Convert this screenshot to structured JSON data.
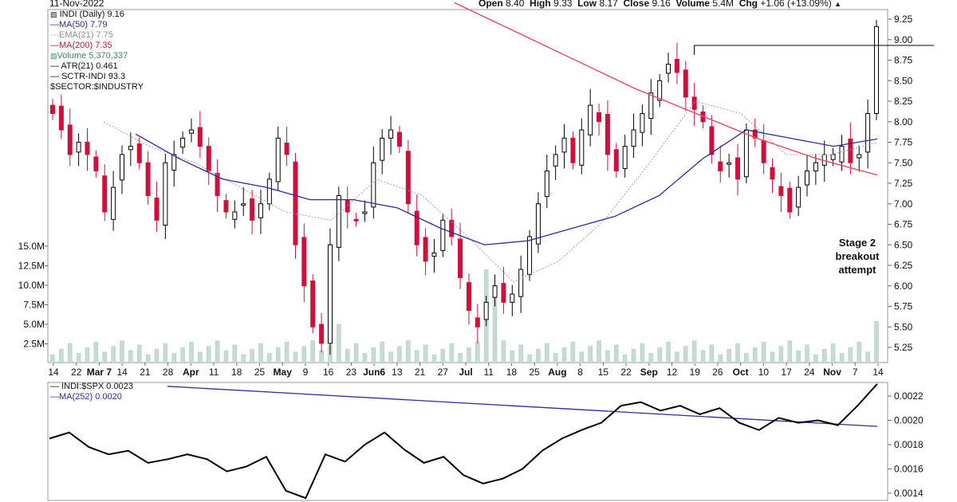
{
  "header": {
    "date": "11-Nov-2022",
    "ohlc": {
      "open_label": "Open",
      "open": "8.40",
      "high_label": "High",
      "high": "9.33",
      "low_label": "Low",
      "low": "8.17",
      "close_label": "Close",
      "close": "9.16",
      "volume_label": "Volume",
      "volume": "5.4M",
      "chg_label": "Chg",
      "chg": "+1.06 (+13.09%)",
      "chg_icon": "up-triangle-icon"
    }
  },
  "legend": {
    "price": "INDI (Daily) 9.16",
    "ma50": "MA(50) 7.79",
    "ema21": "EMA(21) 7.75",
    "ma200": "MA(200) 7.35",
    "volume": "Volume 5,370,337",
    "atr": "ATR(21) 0.461",
    "sctr": "SCTR-INDI 93.3",
    "sector": "$SECTOR:$INDUSTRY"
  },
  "annotation": [
    "Stage 2",
    "breakout",
    "attempt"
  ],
  "rs_legend": {
    "ratio": "INDI:$SPX 0.0023",
    "ma": "MA(252) 0.0020"
  },
  "colors": {
    "up": "#000000",
    "down": "#d0103a",
    "ma50": "#2c2c9a",
    "ema21": "#a0a0a0",
    "ma200": "#e8506a",
    "volume": "#c6dcd2",
    "ratio": "#000000",
    "ratio_ma": "#2c2c9a"
  },
  "chart_data": [
    {
      "type": "candlestick",
      "title": "INDI (Daily)",
      "x_tick_labels": [
        "14",
        "22",
        "Mar 7",
        "14",
        "21",
        "28",
        "Apr",
        "11",
        "18",
        "25",
        "May",
        "9",
        "16",
        "23",
        "Jun6",
        "13",
        "21",
        "27",
        "Jul",
        "11",
        "18",
        "25",
        "Aug",
        "8",
        "15",
        "22",
        "Sep",
        "12",
        "19",
        "26",
        "Oct",
        "10",
        "17",
        "24",
        "Nov",
        "7",
        "14"
      ],
      "y_ticks": [
        "9.25",
        "9.00",
        "8.75",
        "8.50",
        "8.25",
        "8.00",
        "7.75",
        "7.50",
        "7.25",
        "7.00",
        "6.75",
        "6.50",
        "6.25",
        "6.00",
        "5.75",
        "5.50",
        "5.25"
      ],
      "ylim": [
        5.0,
        9.4
      ],
      "close_series": [
        8.1,
        7.9,
        7.6,
        7.75,
        7.6,
        7.4,
        6.9,
        7.2,
        7.6,
        7.7,
        7.5,
        7.1,
        6.8,
        7.5,
        7.6,
        7.8,
        7.9,
        7.7,
        7.4,
        7.1,
        6.9,
        6.9,
        7.0,
        6.8,
        7.0,
        7.3,
        7.8,
        7.6,
        6.5,
        6.0,
        5.5,
        5.3,
        6.5,
        7.1,
        6.9,
        6.8,
        6.9,
        7.5,
        7.8,
        7.9,
        7.7,
        7.0,
        6.5,
        6.3,
        6.4,
        6.8,
        6.6,
        6.1,
        5.7,
        5.5,
        5.8,
        6.0,
        5.8,
        5.9,
        6.2,
        6.6,
        7.0,
        7.4,
        7.6,
        7.8,
        7.5,
        7.9,
        8.2,
        8.0,
        7.6,
        7.4,
        7.7,
        7.9,
        8.1,
        8.35,
        8.5,
        8.7,
        8.6,
        8.3,
        8.15,
        8.0,
        7.6,
        7.4,
        7.5,
        7.3,
        7.9,
        7.8,
        7.5,
        7.3,
        7.1,
        6.9,
        7.2,
        7.4,
        7.5,
        7.6,
        7.6,
        7.7,
        7.5,
        7.6,
        8.1,
        9.16
      ],
      "ma50": {
        "start": 7.95,
        "values": [
          7.85,
          7.55,
          7.3,
          7.2,
          7.05,
          7.05,
          6.95,
          6.7,
          6.5,
          6.55,
          6.7,
          6.85,
          7.1,
          7.55,
          7.9,
          7.8,
          7.7,
          7.79
        ]
      },
      "ema21": {
        "values": [
          8.0,
          7.7,
          7.5,
          7.2,
          6.9,
          6.8,
          7.3,
          7.1,
          6.6,
          6.05,
          6.3,
          6.8,
          7.5,
          8.25,
          8.1,
          7.6,
          7.6,
          7.75
        ]
      },
      "ma200": {
        "values": [
          9.45,
          9.1,
          8.75,
          8.4,
          8.1,
          7.8,
          7.55,
          7.35
        ]
      },
      "resistance_level": 8.93
    },
    {
      "type": "bar",
      "title": "Volume",
      "y_ticks": [
        "15.0M",
        "12.5M",
        "10.0M",
        "7.5M",
        "5.0M",
        "2.5M"
      ],
      "ylim": [
        0,
        17500000
      ],
      "highlight_values": [
        5370000,
        12000000,
        10000000,
        5000000
      ]
    },
    {
      "type": "line",
      "title": "INDI:$SPX",
      "y_ticks": [
        "0.0022",
        "0.0020",
        "0.0018",
        "0.0016",
        "0.0014"
      ],
      "ylim": [
        0.0013,
        0.0024
      ],
      "ratio": [
        0.00185,
        0.0019,
        0.00178,
        0.00172,
        0.00175,
        0.00165,
        0.00168,
        0.00172,
        0.00168,
        0.00158,
        0.00162,
        0.0017,
        0.00142,
        0.00136,
        0.00172,
        0.00166,
        0.0018,
        0.0019,
        0.00176,
        0.00165,
        0.0017,
        0.00155,
        0.00148,
        0.00152,
        0.0016,
        0.00175,
        0.00185,
        0.00192,
        0.00198,
        0.00212,
        0.00215,
        0.00208,
        0.00212,
        0.00205,
        0.0021,
        0.00198,
        0.00192,
        0.00202,
        0.00198,
        0.002,
        0.00196,
        0.00212,
        0.0023
      ],
      "ratio_ma": [
        0.00228,
        0.00195
      ]
    }
  ]
}
